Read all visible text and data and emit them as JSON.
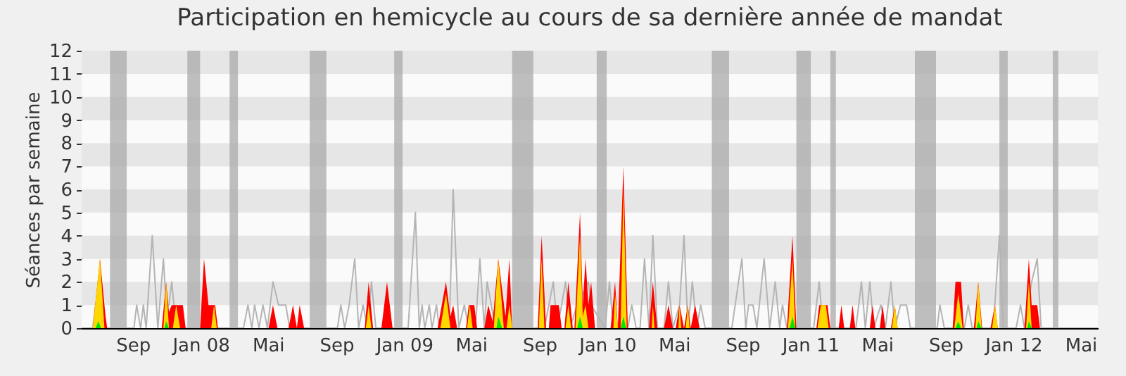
{
  "chart_data": {
    "type": "area",
    "title": "Participation en hemicycle au cours de sa dernière année de mandat",
    "ylabel": "Séances par semaine",
    "xlim": [
      "2007-06-01",
      "2012-06-01"
    ],
    "xticks": [
      {
        "value": "2007-09-01",
        "label": "Sep"
      },
      {
        "value": "2008-01-01",
        "label": "Jan 08"
      },
      {
        "value": "2008-05-01",
        "label": "Mai"
      },
      {
        "value": "2008-09-01",
        "label": "Sep"
      },
      {
        "value": "2009-01-01",
        "label": "Jan 09"
      },
      {
        "value": "2009-05-01",
        "label": "Mai"
      },
      {
        "value": "2009-09-01",
        "label": "Sep"
      },
      {
        "value": "2010-01-01",
        "label": "Jan 10"
      },
      {
        "value": "2010-05-01",
        "label": "Mai"
      },
      {
        "value": "2010-09-01",
        "label": "Sep"
      },
      {
        "value": "2011-01-01",
        "label": "Jan 11"
      },
      {
        "value": "2011-05-01",
        "label": "Mai"
      },
      {
        "value": "2011-09-01",
        "label": "Sep"
      },
      {
        "value": "2012-01-01",
        "label": "Jan 12"
      },
      {
        "value": "2012-05-01",
        "label": "Mai"
      }
    ],
    "ylim": [
      0,
      12
    ],
    "yticks": [
      0,
      1,
      2,
      3,
      4,
      5,
      6,
      7,
      8,
      9,
      10,
      11,
      12
    ],
    "grid": "y",
    "bands": [
      {
        "axis": "x",
        "from": "2007-07-22",
        "to": "2007-08-21",
        "color": "#aaaaaa"
      },
      {
        "axis": "x",
        "from": "2007-12-08",
        "to": "2007-12-31",
        "color": "#aaaaaa"
      },
      {
        "axis": "x",
        "from": "2008-02-22",
        "to": "2008-03-08",
        "color": "#aaaaaa"
      },
      {
        "axis": "x",
        "from": "2008-07-15",
        "to": "2008-08-14",
        "color": "#aaaaaa"
      },
      {
        "axis": "x",
        "from": "2008-12-14",
        "to": "2008-12-29",
        "color": "#aaaaaa"
      },
      {
        "axis": "x",
        "from": "2009-07-14",
        "to": "2009-08-21",
        "color": "#aaaaaa"
      },
      {
        "axis": "x",
        "from": "2009-12-13",
        "to": "2009-12-31",
        "color": "#aaaaaa"
      },
      {
        "axis": "x",
        "from": "2010-07-08",
        "to": "2010-08-08",
        "color": "#aaaaaa"
      },
      {
        "axis": "x",
        "from": "2010-12-07",
        "to": "2011-01-02",
        "color": "#aaaaaa"
      },
      {
        "axis": "x",
        "from": "2011-02-06",
        "to": "2011-02-16",
        "color": "#aaaaaa"
      },
      {
        "axis": "x",
        "from": "2011-07-08",
        "to": "2011-08-15",
        "color": "#aaaaaa"
      },
      {
        "axis": "x",
        "from": "2011-12-07",
        "to": "2011-12-22",
        "color": "#aaaaaa"
      },
      {
        "axis": "x",
        "from": "2012-03-12",
        "to": "2012-03-22",
        "color": "#aaaaaa"
      }
    ],
    "series": [
      {
        "type": "line",
        "color": "#b4b4b4",
        "x": [
          "2007-06-01",
          "2007-06-21",
          "2007-06-26",
          "2007-07-01",
          "2007-09-03",
          "2007-09-08",
          "2007-09-15",
          "2007-09-20",
          "2007-09-25",
          "2007-10-06",
          "2007-10-16",
          "2007-10-26",
          "2007-10-31",
          "2007-11-05",
          "2007-11-10",
          "2007-11-18",
          "2008-03-18",
          "2008-03-26",
          "2008-04-02",
          "2008-04-07",
          "2008-04-15",
          "2008-04-22",
          "2008-04-30",
          "2008-05-10",
          "2008-05-20",
          "2008-06-02",
          "2008-06-09",
          "2008-09-03",
          "2008-09-09",
          "2008-09-16",
          "2008-09-24",
          "2008-10-04",
          "2008-10-11",
          "2008-10-19",
          "2008-10-27",
          "2008-11-03",
          "2008-11-11",
          "2009-01-08",
          "2009-01-21",
          "2009-01-28",
          "2009-02-02",
          "2009-02-07",
          "2009-02-15",
          "2009-02-20",
          "2009-02-28",
          "2009-03-05",
          "2009-03-23",
          "2009-03-30",
          "2009-04-09",
          "2009-04-19",
          "2009-04-27",
          "2009-05-09",
          "2009-05-17",
          "2009-05-25",
          "2009-05-30",
          "2009-06-14",
          "2009-09-10",
          "2009-09-18",
          "2009-09-26",
          "2009-10-03",
          "2009-10-11",
          "2009-10-18",
          "2009-10-26",
          "2009-11-08",
          "2009-11-28",
          "2009-12-03",
          "2009-12-28",
          "2010-01-05",
          "2010-01-12",
          "2010-02-07",
          "2010-02-14",
          "2010-02-22",
          "2010-03-01",
          "2010-03-09",
          "2010-03-17",
          "2010-03-24",
          "2010-04-01",
          "2010-04-13",
          "2010-04-21",
          "2010-04-29",
          "2010-05-11",
          "2010-05-19",
          "2010-05-26",
          "2010-06-03",
          "2010-06-11",
          "2010-06-18",
          "2010-06-26",
          "2010-08-13",
          "2010-08-31",
          "2010-09-07",
          "2010-09-12",
          "2010-09-20",
          "2010-09-27",
          "2010-10-10",
          "2010-10-20",
          "2010-10-30",
          "2010-11-07",
          "2010-11-12",
          "2010-11-20",
          "2011-01-07",
          "2011-01-17",
          "2011-01-24",
          "2011-03-24",
          "2011-04-03",
          "2011-04-10",
          "2011-04-18",
          "2011-04-25",
          "2011-05-08",
          "2011-05-16",
          "2011-05-26",
          "2011-06-02",
          "2011-06-12",
          "2011-06-23",
          "2011-06-30",
          "2011-08-17",
          "2011-08-22",
          "2011-08-30",
          "2011-10-05",
          "2011-10-12",
          "2011-10-19",
          "2011-11-26",
          "2011-12-07",
          "2011-12-14",
          "2012-01-06",
          "2012-01-14",
          "2012-01-21",
          "2012-02-03",
          "2012-02-13",
          "2012-02-20",
          "2012-06-01"
        ],
        "values": [
          0,
          0,
          1,
          0,
          0,
          1,
          0,
          1,
          0,
          4,
          0,
          3,
          1,
          1,
          2,
          0,
          0,
          1,
          0,
          1,
          0,
          1,
          0,
          2,
          1,
          1,
          0,
          0,
          1,
          0,
          1,
          3,
          0,
          1,
          0,
          2,
          0,
          0,
          5,
          0,
          1,
          0,
          1,
          0,
          1,
          0,
          0,
          6,
          0,
          1,
          0,
          0,
          3,
          0,
          2,
          0,
          0,
          1,
          2,
          0,
          1,
          2,
          0,
          1,
          2,
          1,
          0,
          2,
          0,
          0,
          1,
          0,
          0,
          3,
          0,
          4,
          0,
          0,
          2,
          0,
          1,
          4,
          0,
          2,
          0,
          1,
          0,
          0,
          3,
          0,
          1,
          1,
          0,
          3,
          0,
          2,
          0,
          1,
          0,
          0,
          2,
          0,
          0,
          2,
          0,
          2,
          0,
          1,
          0,
          2,
          0,
          1,
          1,
          0,
          0,
          1,
          0,
          0,
          1,
          0,
          0,
          4,
          0,
          0,
          1,
          0,
          2,
          3,
          0,
          0
        ]
      },
      {
        "color": "#ff0000",
        "x": [
          "2007-06-01",
          "2007-06-21",
          "2007-07-04",
          "2007-07-14",
          "2007-07-17",
          "2007-10-23",
          "2007-10-31",
          "2007-11-05",
          "2007-11-10",
          "2007-11-30",
          "2007-12-05",
          "2007-12-31",
          "2008-01-07",
          "2008-01-15",
          "2008-01-27",
          "2008-02-01",
          "2008-05-02",
          "2008-05-10",
          "2008-05-18",
          "2008-06-07",
          "2008-06-15",
          "2008-06-22",
          "2008-06-27",
          "2008-07-05",
          "2008-10-22",
          "2008-10-29",
          "2008-11-06",
          "2008-11-21",
          "2008-12-01",
          "2008-12-11",
          "2009-03-02",
          "2009-03-17",
          "2009-03-25",
          "2009-03-30",
          "2009-04-06",
          "2009-04-22",
          "2009-04-27",
          "2009-05-07",
          "2009-05-12",
          "2009-05-25",
          "2009-06-01",
          "2009-06-09",
          "2009-06-19",
          "2009-07-02",
          "2009-07-09",
          "2009-07-14",
          "2009-08-29",
          "2009-09-05",
          "2009-09-13",
          "2009-09-18",
          "2009-09-21",
          "2009-10-06",
          "2009-10-11",
          "2009-10-16",
          "2009-10-23",
          "2009-10-31",
          "2009-11-03",
          "2009-11-13",
          "2009-11-18",
          "2009-11-23",
          "2009-11-28",
          "2009-12-03",
          "2009-12-10",
          "2010-01-07",
          "2010-01-15",
          "2010-01-20",
          "2010-01-30",
          "2010-02-07",
          "2010-03-17",
          "2010-03-24",
          "2010-04-01",
          "2010-04-13",
          "2010-04-21",
          "2010-04-29",
          "2010-05-04",
          "2010-05-11",
          "2010-05-19",
          "2010-05-26",
          "2010-05-31",
          "2010-06-08",
          "2010-06-16",
          "2010-11-20",
          "2010-11-30",
          "2010-12-07",
          "2011-01-12",
          "2011-01-17",
          "2011-02-01",
          "2011-02-06",
          "2011-02-21",
          "2011-02-26",
          "2011-03-03",
          "2011-03-13",
          "2011-03-18",
          "2011-03-23",
          "2011-04-18",
          "2011-04-23",
          "2011-04-28",
          "2011-05-06",
          "2011-05-11",
          "2011-05-16",
          "2011-05-26",
          "2011-06-02",
          "2011-06-07",
          "2011-09-14",
          "2011-09-19",
          "2011-09-29",
          "2011-10-04",
          "2011-10-22",
          "2011-10-30",
          "2011-11-06",
          "2011-11-21",
          "2011-11-29",
          "2011-12-04",
          "2012-01-21",
          "2012-01-29",
          "2012-02-03",
          "2012-02-13",
          "2012-02-18",
          "2012-06-01"
        ],
        "values": [
          0,
          0,
          3,
          0.5,
          0,
          0,
          2,
          0.7,
          1,
          1,
          0,
          0,
          3,
          1,
          1,
          0,
          0,
          1,
          0,
          0,
          1,
          0,
          1,
          0,
          0,
          2,
          0,
          0,
          2,
          0,
          0,
          2,
          0.5,
          1,
          0,
          0,
          1,
          1,
          0,
          0,
          1,
          0.3,
          3,
          0.5,
          3,
          0,
          0,
          4,
          0,
          0,
          1,
          1,
          0,
          0,
          2,
          0,
          0,
          5,
          1,
          3,
          1,
          2,
          0,
          0,
          2,
          0,
          7,
          0,
          0,
          2,
          0,
          0,
          1,
          0,
          0,
          1,
          0,
          1,
          0,
          1,
          0,
          0,
          4,
          0,
          0,
          1,
          1,
          0,
          0,
          1,
          0,
          0,
          1,
          0,
          0,
          1,
          0,
          0,
          1,
          0,
          0,
          1,
          0,
          0,
          2,
          2,
          0,
          0,
          2,
          0,
          0,
          1,
          0,
          0,
          3,
          1,
          1,
          0,
          0
        ]
      },
      {
        "color": "#ffd700",
        "x": [
          "2007-06-21",
          "2007-07-04",
          "2007-07-12",
          "2007-10-26",
          "2007-10-31",
          "2007-11-05",
          "2007-11-12",
          "2007-11-18",
          "2007-11-25",
          "2008-01-20",
          "2008-01-25",
          "2008-01-30",
          "2008-10-24",
          "2008-10-29",
          "2008-11-03",
          "2009-03-07",
          "2009-03-17",
          "2009-03-25",
          "2009-04-24",
          "2009-04-29",
          "2009-05-04",
          "2009-06-11",
          "2009-06-19",
          "2009-06-29",
          "2009-07-04",
          "2009-07-09",
          "2009-07-14",
          "2009-08-31",
          "2009-09-05",
          "2009-09-10",
          "2009-10-18",
          "2009-10-23",
          "2009-10-28",
          "2009-11-05",
          "2009-11-13",
          "2009-11-18",
          "2009-11-23",
          "2009-11-28",
          "2010-01-12",
          "2010-01-15",
          "2010-01-20",
          "2010-01-25",
          "2010-01-30",
          "2010-02-05",
          "2010-03-22",
          "2010-03-24",
          "2010-03-27",
          "2010-05-09",
          "2010-05-11",
          "2010-05-14",
          "2010-05-22",
          "2010-05-26",
          "2010-05-29",
          "2010-11-22",
          "2010-11-30",
          "2010-12-05",
          "2011-01-14",
          "2011-01-20",
          "2011-01-29",
          "2011-02-03",
          "2011-05-28",
          "2011-06-02",
          "2011-06-07",
          "2011-09-17",
          "2011-09-24",
          "2011-10-02",
          "2011-10-25",
          "2011-10-30",
          "2011-11-05",
          "2011-11-24",
          "2011-11-29",
          "2011-12-04",
          "2012-01-24",
          "2012-01-29",
          "2012-02-03"
        ],
        "values": [
          0,
          3,
          0,
          0,
          2,
          0,
          0,
          1,
          0,
          0,
          1,
          0,
          0,
          1,
          0,
          0,
          1.5,
          0,
          0,
          1,
          0,
          0,
          3,
          0,
          0,
          1,
          0,
          0,
          3,
          0,
          0,
          1,
          0,
          0,
          4,
          0.5,
          1,
          0,
          0,
          1.5,
          0,
          0,
          6,
          0,
          0,
          1,
          0,
          0,
          1,
          0,
          0,
          1,
          0,
          0,
          3,
          0,
          0,
          1,
          1,
          0,
          0,
          1,
          0,
          0,
          1.5,
          0,
          0,
          2,
          0,
          0,
          1,
          0,
          0,
          2,
          0
        ]
      },
      {
        "color": "#00e600",
        "x": [
          "2007-06-26",
          "2007-07-01",
          "2007-07-06",
          "2007-10-28",
          "2007-10-31",
          "2007-11-05",
          "2009-06-16",
          "2009-06-19",
          "2009-06-26",
          "2009-11-08",
          "2009-11-13",
          "2009-11-18",
          "2010-01-25",
          "2010-01-30",
          "2010-02-04",
          "2010-11-25",
          "2010-11-30",
          "2010-12-05",
          "2011-09-19",
          "2011-09-24",
          "2011-09-29",
          "2011-10-27",
          "2011-10-30",
          "2011-11-05",
          "2012-01-26",
          "2012-01-29",
          "2012-02-03"
        ],
        "values": [
          0,
          0.3,
          0,
          0,
          0.3,
          0,
          0,
          0.5,
          0,
          0,
          0.5,
          0,
          0,
          0.5,
          0,
          0,
          0.5,
          0,
          0,
          0.3,
          0,
          0,
          0.3,
          0,
          0,
          0.3,
          0
        ]
      }
    ]
  }
}
